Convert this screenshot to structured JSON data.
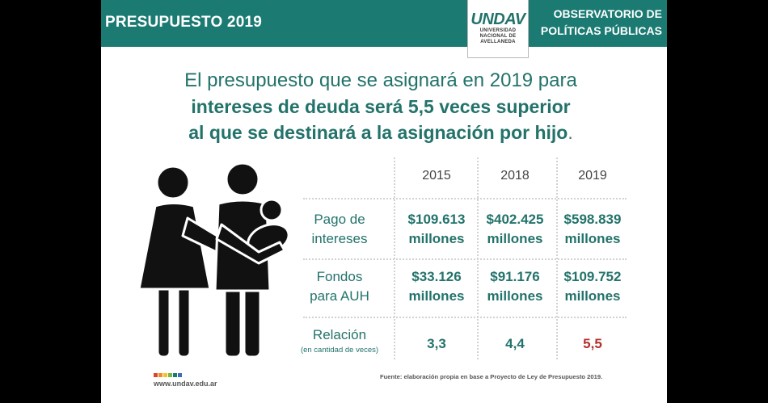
{
  "header": {
    "title": "PRESUPUESTO 2019",
    "observatory_line1": "OBSERVATORIO DE",
    "observatory_line2": "POLÍTICAS PÚBLICAS",
    "accent_color": "#1b7a72"
  },
  "logo": {
    "name": "UNDAV",
    "line1": "UNIVERSIDAD",
    "line2": "NACIONAL DE",
    "line3": "AVELLANEDA"
  },
  "headline": {
    "line1": "El presupuesto que se asignará en 2019 para",
    "line2": "intereses de deuda será 5,5 veces superior",
    "line3": "al que se destinará a la asignación por hijo",
    "period": "."
  },
  "illustration": {
    "icon": "family-silhouette-icon"
  },
  "chart_data": {
    "type": "table",
    "columns": [
      "2015",
      "2018",
      "2019"
    ],
    "rows": [
      {
        "label_line1": "Pago de",
        "label_line2": "intereses",
        "cells": [
          {
            "amount": "$109.613",
            "unit": "millones"
          },
          {
            "amount": "$402.425",
            "unit": "millones"
          },
          {
            "amount": "$598.839",
            "unit": "millones"
          }
        ]
      },
      {
        "label_line1": "Fondos",
        "label_line2": "para AUH",
        "cells": [
          {
            "amount": "$33.126",
            "unit": "millones"
          },
          {
            "amount": "$91.176",
            "unit": "millones"
          },
          {
            "amount": "$109.752",
            "unit": "millones"
          }
        ]
      },
      {
        "label_line1": "Relación",
        "label_line2": "(en cantidad de veces)",
        "cells": [
          {
            "value": "3,3"
          },
          {
            "value": "4,4"
          },
          {
            "value": "5,5"
          }
        ]
      }
    ],
    "text_color": "#23736b",
    "highlight_color": "#b5302a"
  },
  "footer": {
    "website": "www.undav.edu.ar",
    "source": "Fuente: elaboración propia en base a Proyecto de Ley de Presupuesto 2019.",
    "squares": [
      "#e0412c",
      "#f08a24",
      "#f2c12e",
      "#7cb342",
      "#1b7a72",
      "#3f6db5"
    ]
  }
}
